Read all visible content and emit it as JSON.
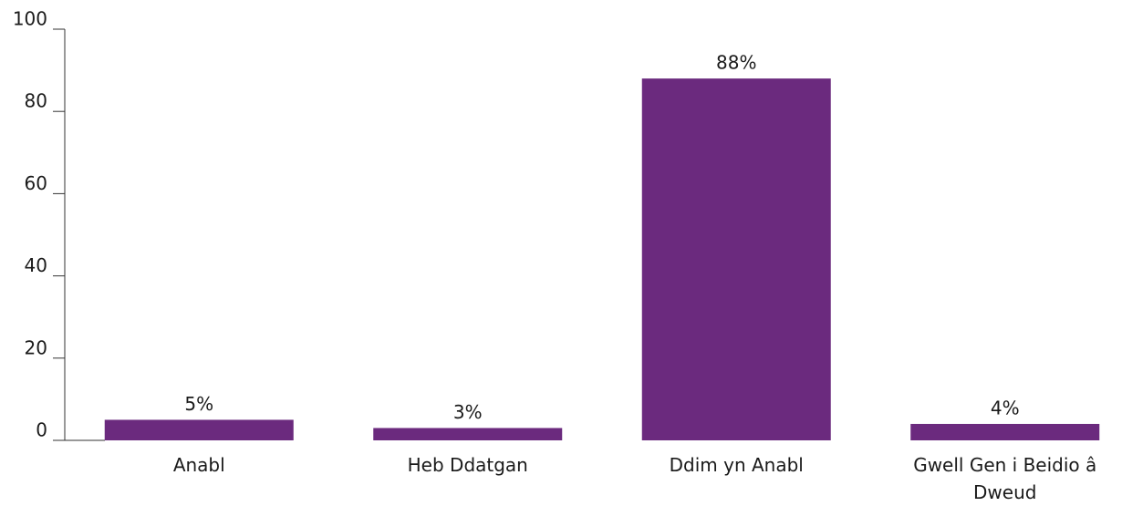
{
  "chart_data": {
    "type": "bar",
    "categories": [
      "Anabl",
      "Heb Ddatgan",
      "Ddim yn Anabl",
      "Gwell Gen i Beidio â Dweud"
    ],
    "values": [
      5,
      3,
      88,
      4
    ],
    "value_labels": [
      "5%",
      "3%",
      "88%",
      "4%"
    ],
    "color": "#6b2a7e",
    "ylim": [
      0,
      100
    ],
    "yticks": [
      0,
      20,
      40,
      60,
      80,
      100
    ],
    "grid": false
  }
}
